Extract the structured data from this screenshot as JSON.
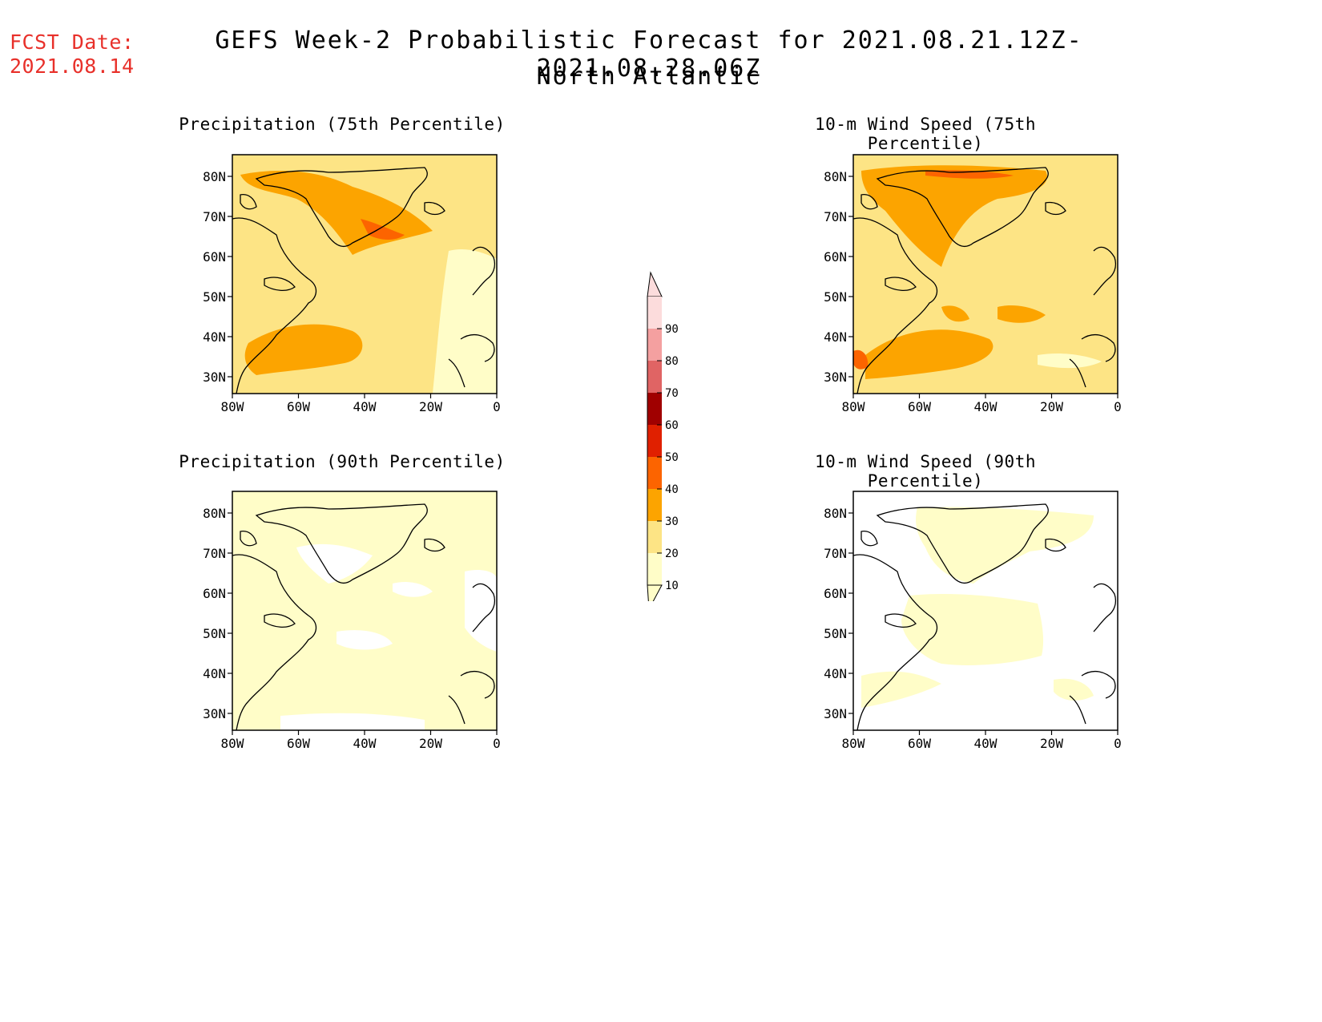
{
  "header": {
    "fcst_label": "FCST Date:",
    "fcst_date": "2021.08.14",
    "title": "GEFS Week-2 Probabilistic Forecast for 2021.08.21.12Z-2021.08.28.06Z",
    "subtitle": "North Atlantic"
  },
  "axes": {
    "lat_ticks": [
      "80N",
      "70N",
      "60N",
      "50N",
      "40N",
      "30N"
    ],
    "lon_ticks": [
      "80W",
      "60W",
      "40W",
      "20W",
      "0"
    ]
  },
  "panels": [
    {
      "title": "Precipitation (75th Percentile)"
    },
    {
      "title": "10-m Wind Speed (75th Percentile)"
    },
    {
      "title": "Precipitation (90th Percentile)"
    },
    {
      "title": "10-m Wind Speed (90th Percentile)"
    }
  ],
  "colorbar": {
    "levels": [
      "10",
      "20",
      "30",
      "40",
      "50",
      "60",
      "70",
      "80",
      "90"
    ],
    "colors": [
      "#fffdc8",
      "#fde485",
      "#fca400",
      "#fc6400",
      "#e02000",
      "#a00000",
      "#e06464",
      "#f4a0a0",
      "#fcdcdc"
    ]
  }
}
